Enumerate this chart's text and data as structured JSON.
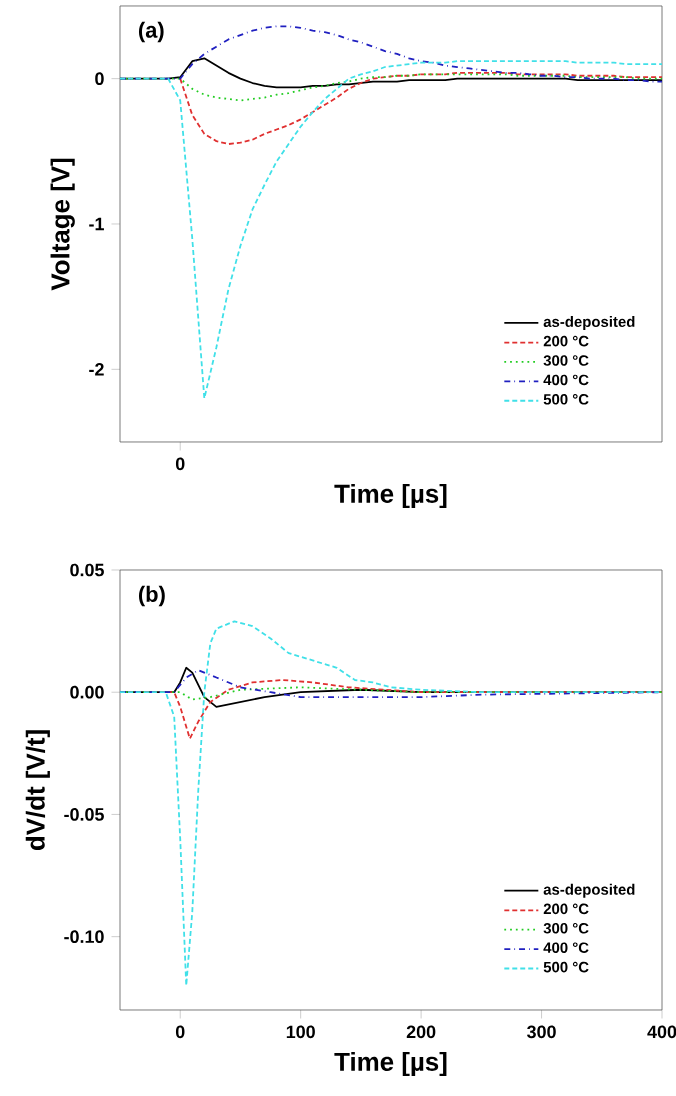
{
  "chart_data": [
    {
      "type": "line",
      "title": "(a)",
      "xlabel": "Time [µs]",
      "ylabel": "Voltage [V]",
      "categories": [
        null,
        null,
        null,
        null,
        null,
        "0",
        null,
        null,
        null,
        null,
        null,
        null,
        null,
        null,
        null,
        null,
        null,
        null,
        null,
        null,
        null,
        null,
        null,
        null,
        null,
        null,
        null,
        null,
        null,
        null,
        null,
        null,
        null,
        null,
        null,
        null,
        null,
        null,
        null,
        null,
        null,
        null,
        null,
        null,
        null,
        null
      ],
      "ylim": [
        -2.5,
        0.5
      ],
      "yticks": [
        -2,
        -1,
        0
      ],
      "legend": "bottom right",
      "series": [
        {
          "name": "as-deposited",
          "color": "#000000",
          "line_style": "solid",
          "values": [
            0,
            0,
            0,
            0,
            0,
            0.01,
            0.12,
            0.14,
            0.09,
            0.04,
            0,
            -0.03,
            -0.05,
            -0.06,
            -0.06,
            -0.06,
            -0.05,
            -0.05,
            -0.04,
            -0.04,
            -0.03,
            -0.02,
            -0.02,
            -0.02,
            -0.01,
            -0.01,
            -0.01,
            -0.01,
            0,
            0,
            0,
            0,
            0,
            0,
            0,
            0,
            0,
            0,
            -0.01,
            -0.01,
            -0.01,
            -0.01,
            -0.01,
            -0.01,
            -0.01,
            -0.01
          ]
        },
        {
          "name": "200 °C",
          "color": "#e03030",
          "line_style": "dashed",
          "values": [
            null,
            null,
            null,
            null,
            null,
            0,
            -0.25,
            -0.38,
            -0.43,
            -0.45,
            -0.44,
            -0.42,
            -0.38,
            -0.35,
            -0.32,
            -0.28,
            -0.23,
            -0.18,
            -0.13,
            -0.07,
            -0.03,
            0,
            0.01,
            0.02,
            0.02,
            0.03,
            0.03,
            0.03,
            0.04,
            0.04,
            0.04,
            0.04,
            0.04,
            0.03,
            0.03,
            0.03,
            0.03,
            0.03,
            0.02,
            0.02,
            0.02,
            0.02,
            0.01,
            0.01,
            0.01,
            0.01
          ]
        },
        {
          "name": "300 °C",
          "color": "#22cc22",
          "line_style": "dotted",
          "values": [
            0,
            0,
            0,
            0,
            0,
            0,
            -0.07,
            -0.11,
            -0.13,
            -0.14,
            -0.15,
            -0.14,
            -0.13,
            -0.11,
            -0.1,
            -0.08,
            -0.06,
            -0.05,
            -0.03,
            -0.02,
            0,
            0.01,
            0.01,
            0.02,
            0.02,
            0.03,
            0.03,
            0.03,
            0.03,
            0.03,
            0.03,
            0.03,
            0.03,
            0.02,
            0.02,
            0.02,
            0.02,
            0.02,
            0.01,
            0.01,
            0.01,
            0.01,
            0.01,
            0,
            0,
            0
          ]
        },
        {
          "name": "400 °C",
          "color": "#2020c0",
          "line_style": "dashdot",
          "values": [
            0,
            0,
            0,
            0,
            0,
            0,
            0.1,
            0.17,
            0.22,
            0.27,
            0.3,
            0.33,
            0.35,
            0.36,
            0.36,
            0.35,
            0.33,
            0.32,
            0.3,
            0.27,
            0.25,
            0.22,
            0.19,
            0.17,
            0.14,
            0.12,
            0.11,
            0.09,
            0.08,
            0.07,
            0.06,
            0.05,
            0.04,
            0.04,
            0.03,
            0.02,
            0.02,
            0.01,
            0.01,
            0,
            0,
            0,
            -0.01,
            -0.01,
            -0.02,
            -0.02
          ]
        },
        {
          "name": "500 °C",
          "color": "#40e0e8",
          "line_style": "dashed",
          "values": [
            0,
            0,
            0,
            0,
            0,
            -0.15,
            -1.1,
            -2.2,
            -1.85,
            -1.45,
            -1.15,
            -0.9,
            -0.73,
            -0.57,
            -0.45,
            -0.33,
            -0.23,
            -0.14,
            -0.07,
            0,
            0.03,
            0.05,
            0.08,
            0.09,
            0.1,
            0.11,
            0.11,
            0.11,
            0.12,
            0.12,
            0.12,
            0.12,
            0.12,
            0.12,
            0.12,
            0.12,
            0.12,
            0.12,
            0.11,
            0.11,
            0.11,
            0.11,
            0.1,
            0.1,
            0.1,
            0.1
          ]
        }
      ]
    },
    {
      "type": "line",
      "title": "(b)",
      "xlabel": "Time [µs]",
      "ylabel": "dV/dt [V/t]",
      "xlim": [
        -50,
        400
      ],
      "ylim": [
        -0.13,
        0.05
      ],
      "xticks": [
        0,
        100,
        200,
        300,
        400
      ],
      "yticks": [
        {
          "value": -0.1,
          "label": "-0.10"
        },
        {
          "value": -0.05,
          "label": "-0.05"
        },
        {
          "value": 0,
          "label": "0.00"
        },
        {
          "value": 0.05,
          "label": "0.05"
        }
      ],
      "legend": "bottom right",
      "series": [
        {
          "name": "as-deposited",
          "color": "#000000",
          "line_style": "solid",
          "x": [
            -50,
            -5,
            0,
            5,
            10,
            20,
            30,
            50,
            70,
            100,
            150,
            200,
            400
          ],
          "values": [
            0,
            0,
            0.004,
            0.01,
            0.008,
            -0.002,
            -0.006,
            -0.004,
            -0.002,
            0,
            0.001,
            0,
            0
          ]
        },
        {
          "name": "200 °C",
          "color": "#e03030",
          "line_style": "dashed",
          "x": [
            -50,
            -5,
            0,
            8,
            15,
            25,
            40,
            60,
            85,
            110,
            140,
            170,
            200,
            400
          ],
          "values": [
            0,
            0,
            -0.006,
            -0.019,
            -0.012,
            -0.004,
            0.001,
            0.004,
            0.005,
            0.004,
            0.002,
            0.001,
            0,
            0
          ]
        },
        {
          "name": "300 °C",
          "color": "#22cc22",
          "line_style": "dotted",
          "x": [
            -50,
            0,
            10,
            25,
            50,
            100,
            150,
            200,
            400
          ],
          "values": [
            0,
            0,
            -0.003,
            -0.002,
            0.001,
            0.002,
            0.001,
            0,
            0
          ]
        },
        {
          "name": "400 °C",
          "color": "#2020c0",
          "line_style": "dashdot",
          "x": [
            -50,
            -5,
            5,
            15,
            30,
            50,
            75,
            100,
            150,
            200,
            250,
            400
          ],
          "values": [
            0,
            0,
            0.006,
            0.009,
            0.006,
            0.002,
            0,
            -0.002,
            -0.002,
            -0.002,
            -0.001,
            0
          ]
        },
        {
          "name": "500 °C",
          "color": "#40e0e8",
          "line_style": "dashed",
          "x": [
            -50,
            -12,
            -5,
            0,
            5,
            10,
            15,
            20,
            25,
            30,
            45,
            60,
            75,
            90,
            110,
            130,
            145,
            160,
            175,
            200,
            250,
            400
          ],
          "values": [
            0,
            0,
            -0.01,
            -0.06,
            -0.12,
            -0.09,
            -0.04,
            0,
            0.02,
            0.026,
            0.029,
            0.027,
            0.022,
            0.016,
            0.013,
            0.01,
            0.005,
            0.004,
            0.002,
            0.001,
            0,
            0
          ]
        }
      ]
    }
  ]
}
